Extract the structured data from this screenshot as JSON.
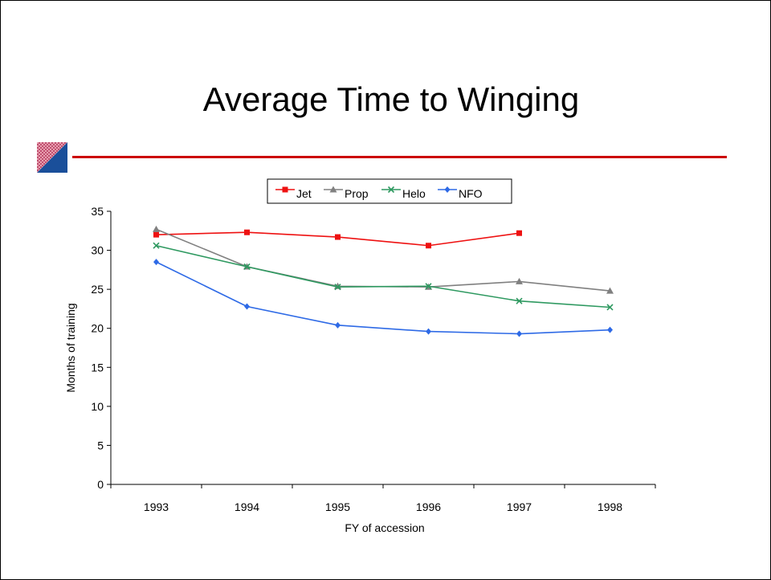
{
  "slide": {
    "title": "Average Time to Winging",
    "accent_color": "#cc0000",
    "decoration_icon": "diagonal-split-square-icon"
  },
  "chart_data": {
    "type": "line",
    "title": "",
    "xlabel": "FY of accession",
    "ylabel": "Months of training",
    "categories": [
      "1993",
      "1994",
      "1995",
      "1996",
      "1997",
      "1998"
    ],
    "ylim": [
      0,
      35
    ],
    "yticks": [
      0,
      5,
      10,
      15,
      20,
      25,
      30,
      35
    ],
    "grid": false,
    "legend_position": "top",
    "series": [
      {
        "name": "Jet",
        "color": "#ee1111",
        "marker": "square",
        "values": [
          32.0,
          32.3,
          31.7,
          30.6,
          32.2,
          null
        ]
      },
      {
        "name": "Prop",
        "color": "#808080",
        "marker": "triangle",
        "values": [
          32.7,
          27.9,
          25.4,
          25.3,
          26.0,
          24.8
        ]
      },
      {
        "name": "Helo",
        "color": "#2e9960",
        "marker": "x",
        "values": [
          30.6,
          27.9,
          25.3,
          25.4,
          23.5,
          22.7
        ]
      },
      {
        "name": "NFO",
        "color": "#2e6ae6",
        "marker": "diamond",
        "values": [
          28.5,
          22.8,
          20.4,
          19.6,
          19.3,
          19.8
        ]
      }
    ]
  }
}
